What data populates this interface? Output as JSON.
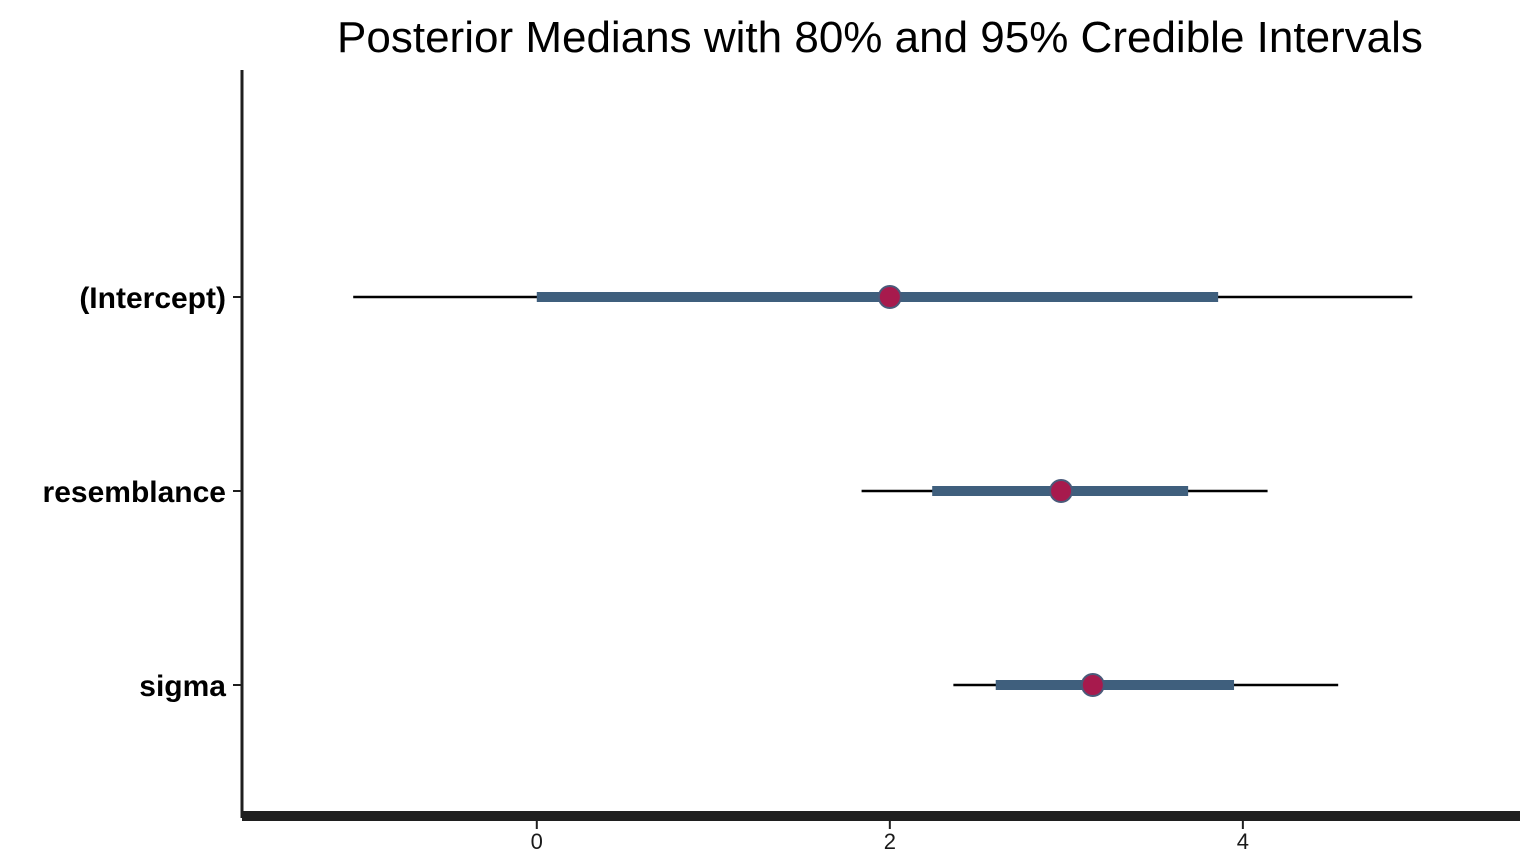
{
  "chart_data": {
    "type": "interval",
    "title": "Posterior Medians with 80% and 95% Credible Intervals",
    "xlabel": "",
    "ylabel": "",
    "xlim": [
      -1.67,
      5.57
    ],
    "x_ticks": [
      0,
      2,
      4
    ],
    "x_tick_labels": [
      "0",
      "2",
      "4"
    ],
    "grid": false,
    "legend": "none",
    "parameters": [
      {
        "label": "(Intercept)",
        "median": 2.0,
        "inner": [
          0.0,
          3.86
        ],
        "outer": [
          -1.04,
          4.96
        ]
      },
      {
        "label": "resemblance",
        "median": 2.97,
        "inner": [
          2.24,
          3.69
        ],
        "outer": [
          1.84,
          4.14
        ]
      },
      {
        "label": "sigma",
        "median": 3.15,
        "inner": [
          2.6,
          3.95
        ],
        "outer": [
          2.36,
          4.54
        ]
      }
    ],
    "colors": {
      "outer_interval": "#000000",
      "inner_interval": "#3f5f7d",
      "point_fill": "#a71a4d",
      "point_stroke": "#4a5a7a",
      "axis": "#1f1f1f"
    }
  }
}
